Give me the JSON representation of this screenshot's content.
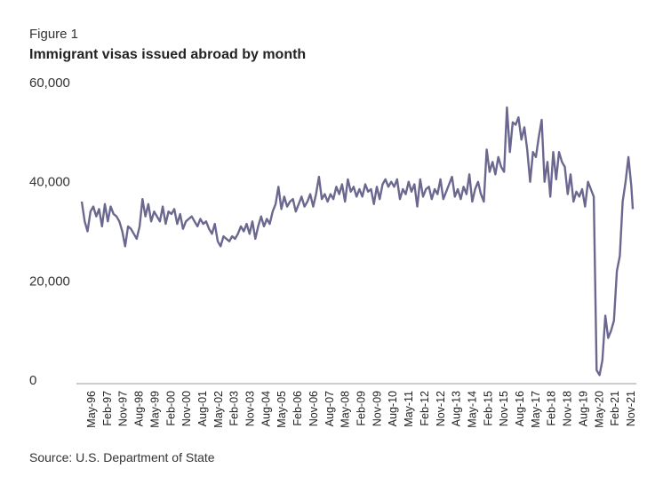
{
  "figure_label": "Figure 1",
  "source": "Source: U.S. Department of State",
  "chart_data": {
    "type": "line",
    "title": "Immigrant visas issued abroad by month",
    "xlabel": "",
    "ylabel": "",
    "ylim": [
      0,
      60000
    ],
    "yticks": [
      0,
      20000,
      40000,
      60000
    ],
    "ytick_labels": [
      "0",
      "20,000",
      "40,000",
      "60,000"
    ],
    "xtick_labels": [
      "May-96",
      "Feb-97",
      "Nov-97",
      "Aug-98",
      "May-99",
      "Feb-00",
      "Nov-00",
      "Aug-01",
      "May-02",
      "Feb-03",
      "Nov-03",
      "Aug-04",
      "May-05",
      "Feb-06",
      "Nov-06",
      "Aug-07",
      "May-08",
      "Feb-09",
      "Nov-09",
      "Aug-10",
      "May-11",
      "Feb-12",
      "Nov-12",
      "Aug-13",
      "May-14",
      "Feb-15",
      "Nov-15",
      "Aug-16",
      "May-17",
      "Feb-18",
      "Nov-18",
      "Aug-19",
      "May-20",
      "Feb-21",
      "Nov-21"
    ],
    "grid": false,
    "line_color": "#6b6890",
    "series": [
      {
        "name": "",
        "values": [
          [
            0,
            36000
          ],
          [
            2,
            32000
          ],
          [
            4,
            30000
          ],
          [
            6,
            34000
          ],
          [
            8,
            35000
          ],
          [
            10,
            33000
          ],
          [
            12,
            34500
          ],
          [
            14,
            31000
          ],
          [
            16,
            35500
          ],
          [
            18,
            32000
          ],
          [
            20,
            35000
          ],
          [
            22,
            33500
          ],
          [
            24,
            33000
          ],
          [
            26,
            32000
          ],
          [
            28,
            30000
          ],
          [
            30,
            27000
          ],
          [
            32,
            31000
          ],
          [
            34,
            30500
          ],
          [
            36,
            29500
          ],
          [
            38,
            28500
          ],
          [
            40,
            31000
          ],
          [
            42,
            36500
          ],
          [
            44,
            33000
          ],
          [
            46,
            35500
          ],
          [
            48,
            32000
          ],
          [
            50,
            34000
          ],
          [
            52,
            33000
          ],
          [
            54,
            32000
          ],
          [
            56,
            35000
          ],
          [
            58,
            31500
          ],
          [
            60,
            34000
          ],
          [
            62,
            33500
          ],
          [
            64,
            34500
          ],
          [
            66,
            31500
          ],
          [
            68,
            33500
          ],
          [
            70,
            30500
          ],
          [
            72,
            32000
          ],
          [
            74,
            32500
          ],
          [
            76,
            33000
          ],
          [
            78,
            32000
          ],
          [
            80,
            31000
          ],
          [
            82,
            32500
          ],
          [
            84,
            31500
          ],
          [
            86,
            32000
          ],
          [
            88,
            30500
          ],
          [
            90,
            29500
          ],
          [
            92,
            31500
          ],
          [
            94,
            28000
          ],
          [
            96,
            27000
          ],
          [
            98,
            29000
          ],
          [
            100,
            28500
          ],
          [
            102,
            28000
          ],
          [
            104,
            29000
          ],
          [
            106,
            28500
          ],
          [
            108,
            29500
          ],
          [
            110,
            31000
          ],
          [
            112,
            30000
          ],
          [
            114,
            31500
          ],
          [
            116,
            29500
          ],
          [
            118,
            32000
          ],
          [
            120,
            28500
          ],
          [
            122,
            31000
          ],
          [
            124,
            33000
          ],
          [
            126,
            31000
          ],
          [
            128,
            32500
          ],
          [
            130,
            31500
          ],
          [
            132,
            34000
          ],
          [
            134,
            35500
          ],
          [
            136,
            39000
          ],
          [
            138,
            34500
          ],
          [
            140,
            37000
          ],
          [
            142,
            35000
          ],
          [
            144,
            36000
          ],
          [
            146,
            36500
          ],
          [
            148,
            34000
          ],
          [
            150,
            35500
          ],
          [
            152,
            37000
          ],
          [
            154,
            35000
          ],
          [
            156,
            36000
          ],
          [
            158,
            37500
          ],
          [
            160,
            35000
          ],
          [
            162,
            37500
          ],
          [
            164,
            41000
          ],
          [
            166,
            36500
          ],
          [
            168,
            37500
          ],
          [
            170,
            36000
          ],
          [
            172,
            37500
          ],
          [
            174,
            36500
          ],
          [
            176,
            39000
          ],
          [
            178,
            37500
          ],
          [
            180,
            39500
          ],
          [
            182,
            36000
          ],
          [
            184,
            40500
          ],
          [
            186,
            38000
          ],
          [
            188,
            39000
          ],
          [
            190,
            37000
          ],
          [
            192,
            38500
          ],
          [
            194,
            37000
          ],
          [
            196,
            39500
          ],
          [
            198,
            38000
          ],
          [
            200,
            38500
          ],
          [
            202,
            35500
          ],
          [
            204,
            39000
          ],
          [
            206,
            36500
          ],
          [
            208,
            39500
          ],
          [
            210,
            40500
          ],
          [
            212,
            39000
          ],
          [
            214,
            40000
          ],
          [
            216,
            39000
          ],
          [
            218,
            40500
          ],
          [
            220,
            36500
          ],
          [
            222,
            38500
          ],
          [
            224,
            37500
          ],
          [
            226,
            40000
          ],
          [
            228,
            38000
          ],
          [
            230,
            39500
          ],
          [
            232,
            35000
          ],
          [
            234,
            40500
          ],
          [
            236,
            37000
          ],
          [
            238,
            38500
          ],
          [
            240,
            39000
          ],
          [
            242,
            36500
          ],
          [
            244,
            38500
          ],
          [
            246,
            37500
          ],
          [
            248,
            40500
          ],
          [
            250,
            36500
          ],
          [
            252,
            38000
          ],
          [
            254,
            39500
          ],
          [
            256,
            41000
          ],
          [
            258,
            37000
          ],
          [
            260,
            38500
          ],
          [
            262,
            36500
          ],
          [
            264,
            39000
          ],
          [
            266,
            37500
          ],
          [
            268,
            41500
          ],
          [
            270,
            36000
          ],
          [
            272,
            38500
          ],
          [
            274,
            40000
          ],
          [
            276,
            37500
          ],
          [
            278,
            36000
          ],
          [
            280,
            46500
          ],
          [
            282,
            42000
          ],
          [
            284,
            44000
          ],
          [
            286,
            41500
          ],
          [
            288,
            45000
          ],
          [
            290,
            43000
          ],
          [
            292,
            42000
          ],
          [
            294,
            55000
          ],
          [
            296,
            46000
          ],
          [
            298,
            52000
          ],
          [
            300,
            51500
          ],
          [
            302,
            53000
          ],
          [
            304,
            48500
          ],
          [
            306,
            51000
          ],
          [
            308,
            46500
          ],
          [
            310,
            40000
          ],
          [
            312,
            46000
          ],
          [
            314,
            45000
          ],
          [
            316,
            49000
          ],
          [
            318,
            52500
          ],
          [
            320,
            40000
          ],
          [
            322,
            44000
          ],
          [
            324,
            37000
          ],
          [
            326,
            46000
          ],
          [
            328,
            40500
          ],
          [
            330,
            46000
          ],
          [
            332,
            44000
          ],
          [
            334,
            43000
          ],
          [
            336,
            37500
          ],
          [
            338,
            41500
          ],
          [
            340,
            36000
          ],
          [
            342,
            38000
          ],
          [
            344,
            37000
          ],
          [
            346,
            38500
          ],
          [
            348,
            35000
          ],
          [
            350,
            40000
          ],
          [
            352,
            38500
          ],
          [
            354,
            37000
          ],
          [
            356,
            2000
          ],
          [
            358,
            1000
          ],
          [
            360,
            4000
          ],
          [
            362,
            13000
          ],
          [
            364,
            8500
          ],
          [
            366,
            10000
          ],
          [
            368,
            12000
          ],
          [
            370,
            22000
          ],
          [
            372,
            25000
          ],
          [
            374,
            36000
          ],
          [
            376,
            40000
          ],
          [
            378,
            45000
          ],
          [
            380,
            39000
          ],
          [
            381,
            34500
          ]
        ]
      }
    ],
    "x_domain": [
      0,
      381
    ]
  }
}
